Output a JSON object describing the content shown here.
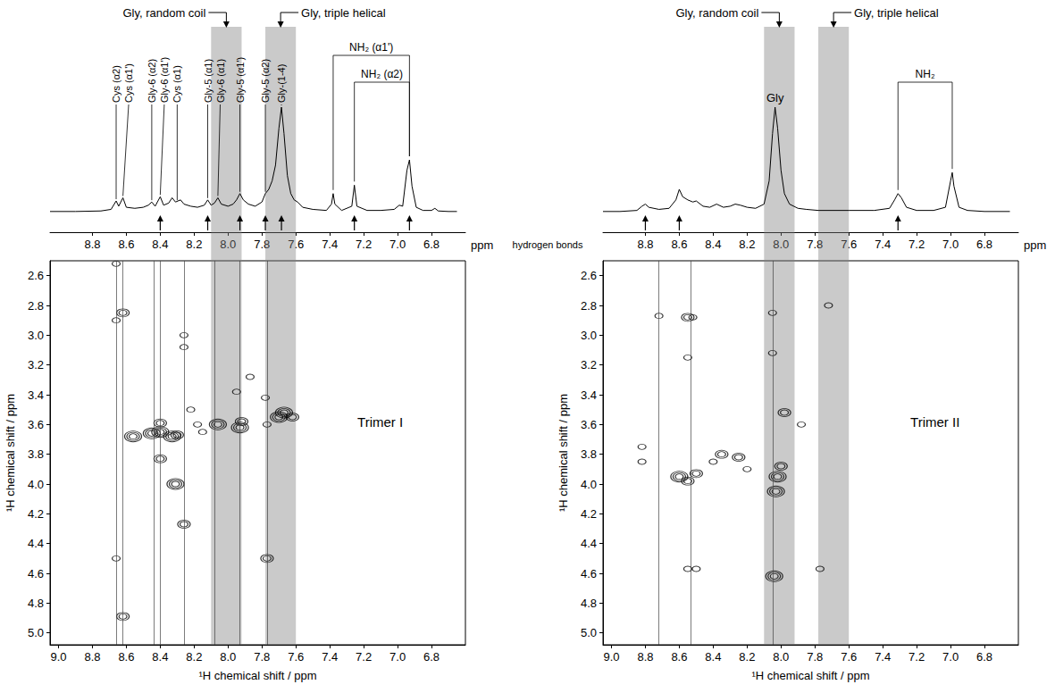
{
  "chart_data": [
    {
      "type": "line",
      "x_label": "ppm",
      "xlim": [
        9.05,
        6.6
      ],
      "xticks": [
        8.8,
        8.6,
        8.4,
        8.2,
        {
          "value": 8,
          "label": "8.0"
        },
        7.8,
        7.6,
        7.4,
        7.2,
        {
          "value": 7,
          "label": "7.0"
        },
        6.8
      ],
      "ylim": [
        0,
        100
      ],
      "tick_labels": "x",
      "color": "#000000",
      "x": [
        9.05,
        8.9,
        8.75,
        8.69,
        8.66,
        8.645,
        8.62,
        8.6,
        8.55,
        8.5,
        8.47,
        8.45,
        8.43,
        8.4,
        8.38,
        8.35,
        8.33,
        8.31,
        8.28,
        8.26,
        8.22,
        8.18,
        8.14,
        8.12,
        8.1,
        8.08,
        8.06,
        8.04,
        8,
        7.97,
        7.95,
        7.93,
        7.91,
        7.88,
        7.84,
        7.8,
        7.78,
        7.76,
        7.74,
        7.72,
        7.7,
        7.685,
        7.67,
        7.65,
        7.63,
        7.61,
        7.59,
        7.56,
        7.5,
        7.42,
        7.39,
        7.38,
        7.37,
        7.33,
        7.27,
        7.255,
        7.24,
        7.18,
        7.1,
        7.02,
        6.99,
        6.97,
        6.945,
        6.93,
        6.915,
        6.89,
        6.85,
        6.8,
        6.78,
        6.76,
        6.7,
        6.65
      ],
      "values": [
        1,
        1,
        1.5,
        3,
        11,
        6,
        14,
        5,
        4,
        5,
        7,
        10,
        6,
        15,
        7,
        9,
        14,
        10,
        12,
        8,
        6,
        5,
        7,
        12,
        7,
        9,
        14,
        8,
        6,
        8,
        12,
        18,
        12,
        8,
        6,
        10,
        18,
        22,
        30,
        45,
        80,
        100,
        75,
        35,
        18,
        12,
        10,
        5,
        3,
        2,
        8,
        18,
        8,
        2,
        6,
        26,
        6,
        2,
        2,
        3,
        7,
        6,
        40,
        50,
        25,
        5,
        2,
        2,
        4,
        1.5,
        1,
        1
      ],
      "bands": [
        {
          "label": "Gly, random coil",
          "x": [
            8.1,
            7.92
          ]
        },
        {
          "label": "Gly, triple helical",
          "x": [
            7.78,
            7.6
          ]
        }
      ],
      "peak_labels": [
        {
          "text": "Cys (α2)",
          "x": 8.66
        },
        {
          "text": "Cys (α1')",
          "x": 8.62
        },
        {
          "text": "Gly-6 (α2)",
          "x": 8.45
        },
        {
          "text": "Gly-6 (α1')",
          "x": 8.4
        },
        {
          "text": "Cys (α1)",
          "x": 8.3
        },
        {
          "text": "Gly-5 (α1)",
          "x": 8.12
        },
        {
          "text": "Gly-6 (α1)",
          "x": 8.06
        },
        {
          "text": "Gly-5 (α1')",
          "x": 7.93
        },
        {
          "text": "Gly-5 (α2)",
          "x": 7.78
        },
        {
          "text": "Gly-(1-4)",
          "x": 7.685
        }
      ],
      "brackets": [
        {
          "text": "NH₂ (α1')",
          "x": [
            7.38,
            6.93
          ]
        },
        {
          "text": "NH₂ (α2)",
          "x": [
            7.255,
            6.93
          ]
        }
      ],
      "hydrogen_bonds_label": "hydrogen bonds",
      "hydrogen_bonds": [
        8.4,
        8.12,
        7.93,
        7.78,
        7.685,
        7.255,
        6.93
      ]
    },
    {
      "type": "scatter",
      "title": "Trimer I",
      "x_label": "¹H chemical shift / ppm",
      "y_label": "¹H chemical shift / ppm",
      "xlim": [
        9.05,
        6.6
      ],
      "xticks": [
        {
          "value": 9,
          "label": "9.0"
        },
        8.8,
        8.6,
        8.4,
        8.2,
        {
          "value": 8,
          "label": "8.0"
        },
        7.8,
        7.6,
        7.4,
        7.2,
        {
          "value": 7,
          "label": "7.0"
        },
        6.8
      ],
      "ylim": [
        5.08,
        2.5
      ],
      "yticks": [
        2.6,
        2.8,
        {
          "value": 3,
          "label": "3.0"
        },
        3.2,
        3.4,
        3.6,
        3.8,
        {
          "value": 4,
          "label": "4.0"
        },
        4.2,
        4.4,
        4.6,
        4.8,
        {
          "value": 5,
          "label": "5.0"
        }
      ],
      "x": [
        8.66,
        8.66,
        8.66,
        8.62,
        8.62,
        8.56,
        8.45,
        8.4,
        8.4,
        8.4,
        8.33,
        8.31,
        8.3,
        8.26,
        8.26,
        8.26,
        8.22,
        8.18,
        8.15,
        8.06,
        7.93,
        7.92,
        7.95,
        7.87,
        7.78,
        7.77,
        7.77,
        7.7,
        7.67,
        7.62
      ],
      "y": [
        2.52,
        2.9,
        4.5,
        2.85,
        4.89,
        3.68,
        3.66,
        3.65,
        3.59,
        3.83,
        3.68,
        4.0,
        3.67,
        3.0,
        3.08,
        4.27,
        3.5,
        3.6,
        3.65,
        3.6,
        3.62,
        3.58,
        3.38,
        3.28,
        3.42,
        4.5,
        3.6,
        3.55,
        3.52,
        3.55
      ],
      "levels": [
        1,
        1,
        1,
        2,
        2,
        3,
        3,
        3,
        2,
        2,
        3,
        3,
        2,
        1,
        1,
        2,
        1,
        1,
        1,
        3,
        3,
        2,
        1,
        1,
        1,
        2,
        1,
        3,
        3,
        2
      ],
      "lines": [
        8.66,
        8.62,
        8.44,
        8.4,
        8.26,
        8.08,
        7.93,
        7.77
      ]
    },
    {
      "type": "line",
      "x_label": "ppm",
      "xlim": [
        9.05,
        6.6
      ],
      "xticks": [
        8.8,
        8.6,
        8.4,
        8.2,
        {
          "value": 8,
          "label": "8.0"
        },
        7.8,
        7.6,
        7.4,
        7.2,
        {
          "value": 7,
          "label": "7.0"
        },
        6.8
      ],
      "ylim": [
        0,
        100
      ],
      "tick_labels": "x",
      "color": "#000000",
      "x": [
        9.05,
        8.95,
        8.85,
        8.82,
        8.8,
        8.78,
        8.72,
        8.66,
        8.62,
        8.6,
        8.58,
        8.55,
        8.52,
        8.5,
        8.46,
        8.42,
        8.38,
        8.34,
        8.3,
        8.27,
        8.24,
        8.2,
        8.15,
        8.1,
        8.07,
        8.05,
        8.035,
        8.02,
        8,
        7.98,
        7.95,
        7.9,
        7.85,
        7.78,
        7.6,
        7.45,
        7.36,
        7.33,
        7.31,
        7.29,
        7.26,
        7.2,
        7.1,
        7.03,
        7,
        6.99,
        6.98,
        6.95,
        6.9,
        6.8,
        6.65
      ],
      "values": [
        1,
        1,
        2,
        6,
        8,
        5,
        3,
        4,
        12,
        22,
        15,
        12,
        10,
        11,
        6,
        5,
        8,
        5,
        6,
        8,
        7,
        5,
        4,
        8,
        30,
        75,
        100,
        80,
        40,
        18,
        8,
        4,
        3,
        2,
        2,
        2,
        4,
        12,
        18,
        14,
        5,
        2,
        2,
        5,
        30,
        38,
        25,
        5,
        2,
        1,
        1
      ],
      "bands": [
        {
          "label": "Gly, random coil",
          "x": [
            8.1,
            7.92
          ]
        },
        {
          "label": "Gly, triple helical",
          "x": [
            7.78,
            7.6
          ]
        }
      ],
      "peak_labels": [
        {
          "text": "Gly",
          "x": 8.035
        }
      ],
      "brackets": [
        {
          "text": "NH₂",
          "x": [
            7.31,
            6.99
          ]
        }
      ],
      "hydrogen_bonds": [
        8.8,
        8.6,
        7.31
      ]
    },
    {
      "type": "scatter",
      "title": "Trimer II",
      "x_label": "¹H chemical shift / ppm",
      "y_label": "¹H chemical shift / ppm",
      "xlim": [
        9.05,
        6.6
      ],
      "xticks": [
        {
          "value": 9,
          "label": "9.0"
        },
        8.8,
        8.6,
        8.4,
        8.2,
        {
          "value": 8,
          "label": "8.0"
        },
        7.8,
        7.6,
        7.4,
        7.2,
        {
          "value": 7,
          "label": "7.0"
        },
        6.8
      ],
      "ylim": [
        5.08,
        2.5
      ],
      "yticks": [
        2.6,
        2.8,
        {
          "value": 3,
          "label": "3.0"
        },
        3.2,
        3.4,
        3.6,
        3.8,
        {
          "value": 4,
          "label": "4.0"
        },
        4.2,
        4.4,
        4.6,
        4.8,
        {
          "value": 5,
          "label": "5.0"
        }
      ],
      "x": [
        8.82,
        8.82,
        8.72,
        8.55,
        8.52,
        8.55,
        8.6,
        8.55,
        8.5,
        8.55,
        8.5,
        8.4,
        8.35,
        8.25,
        8.2,
        8.05,
        8.05,
        7.98,
        8.0,
        8.02,
        8.03,
        8.04,
        7.88,
        7.77,
        7.72
      ],
      "y": [
        3.75,
        3.85,
        2.87,
        2.88,
        2.88,
        3.15,
        3.95,
        3.98,
        3.93,
        4.57,
        4.57,
        3.85,
        3.8,
        3.82,
        3.9,
        2.85,
        3.12,
        3.52,
        3.88,
        3.95,
        4.05,
        4.62,
        3.6,
        4.57,
        2.8
      ],
      "levels": [
        1,
        1,
        1,
        2,
        1,
        1,
        3,
        2,
        2,
        1,
        1,
        1,
        2,
        2,
        1,
        1,
        1,
        2,
        2,
        3,
        3,
        3,
        1,
        1,
        1
      ],
      "lines": [
        8.72,
        8.53,
        8.05
      ]
    }
  ]
}
